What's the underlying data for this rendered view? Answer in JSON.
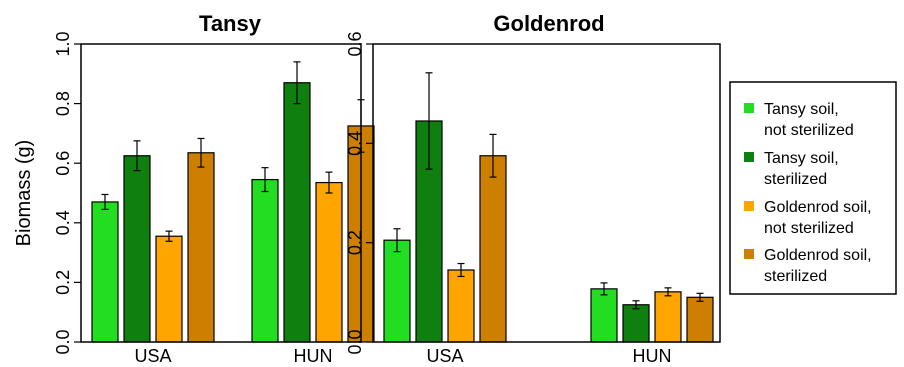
{
  "legend": {
    "items": [
      {
        "label_line1": "Tansy soil,",
        "label_line2": "not sterilized",
        "color": "#22dd22"
      },
      {
        "label_line1": "Tansy soil,",
        "label_line2": "sterilized",
        "color": "#0f7f0f"
      },
      {
        "label_line1": "Goldenrod soil,",
        "label_line2": "not sterilized",
        "color": "#ffa500"
      },
      {
        "label_line1": "Goldenrod soil,",
        "label_line2": "sterilized",
        "color": "#cd8000"
      }
    ]
  },
  "chart_data": [
    {
      "type": "bar",
      "title": "Tansy",
      "ylabel": "Biomass (g)",
      "ylim": [
        0,
        1.0
      ],
      "yticks": [
        "0.0",
        "0.2",
        "0.4",
        "0.6",
        "0.8",
        "1.0"
      ],
      "categories": [
        "USA",
        "HUN"
      ],
      "series": [
        {
          "name": "Tansy soil, not sterilized",
          "values": [
            0.47,
            0.545
          ],
          "errors": [
            0.025,
            0.04
          ]
        },
        {
          "name": "Tansy soil, sterilized",
          "values": [
            0.625,
            0.87
          ],
          "errors": [
            0.05,
            0.07
          ]
        },
        {
          "name": "Goldenrod soil, not sterilized",
          "values": [
            0.355,
            0.535
          ],
          "errors": [
            0.017,
            0.035
          ]
        },
        {
          "name": "Goldenrod soil, sterilized",
          "values": [
            0.635,
            0.725
          ],
          "errors": [
            0.048,
            0.088
          ]
        }
      ]
    },
    {
      "type": "bar",
      "title": "Goldenrod",
      "ylabel": "",
      "ylim": [
        0,
        0.6
      ],
      "yticks": [
        "0.0",
        "0.2",
        "0.4",
        "0.6"
      ],
      "categories": [
        "USA",
        "HUN"
      ],
      "series": [
        {
          "name": "Tansy soil, not sterilized",
          "values": [
            0.205,
            0.107
          ],
          "errors": [
            0.023,
            0.012
          ]
        },
        {
          "name": "Tansy soil, sterilized",
          "values": [
            0.445,
            0.075
          ],
          "errors": [
            0.097,
            0.008
          ]
        },
        {
          "name": "Goldenrod soil, not sterilized",
          "values": [
            0.145,
            0.101
          ],
          "errors": [
            0.013,
            0.008
          ]
        },
        {
          "name": "Goldenrod soil, sterilized",
          "values": [
            0.375,
            0.09
          ],
          "errors": [
            0.043,
            0.008
          ]
        }
      ]
    }
  ]
}
